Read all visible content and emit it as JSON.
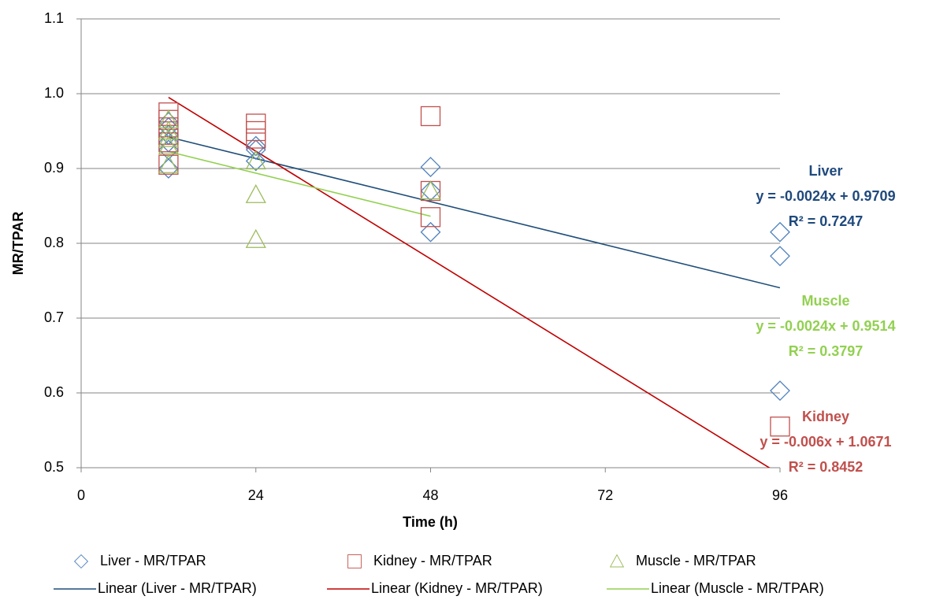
{
  "chart_data": {
    "type": "scatter",
    "x_label": "Time (h)",
    "y_label": "MR/TPAR",
    "xlim": [
      0,
      96
    ],
    "xticks": [
      0,
      24,
      48,
      72,
      96
    ],
    "ylim": [
      0.5,
      1.1
    ],
    "yticks": [
      0.5,
      0.6,
      0.7,
      0.8,
      0.9,
      {
        "value": 1.0,
        "label": "1.0"
      },
      1.1
    ],
    "grid": true,
    "series": [
      {
        "name": "Liver - MR/TPAR",
        "marker": "diamond",
        "color": "#4f81bd",
        "x": [
          12,
          12,
          12,
          12,
          12,
          12,
          24,
          24,
          24,
          48,
          48,
          48,
          96,
          96,
          96
        ],
        "values": [
          0.962,
          0.955,
          0.945,
          0.935,
          0.925,
          0.9,
          0.93,
          0.925,
          0.91,
          0.902,
          0.87,
          0.815,
          0.815,
          0.783,
          0.603
        ],
        "trendline": {
          "name": "Linear (Liver - MR/TPAR)",
          "color": "#1f4e79",
          "label": "Liver",
          "label_color": "#1f497d",
          "equation": "y = -0.0024x + 0.9709",
          "r2": "R² = 0.7247",
          "slope": -0.0024,
          "intercept": 0.9709
        }
      },
      {
        "name": "Kidney - MR/TPAR",
        "marker": "square",
        "color": "#c0504d",
        "x": [
          12,
          12,
          12,
          12,
          12,
          12,
          24,
          24,
          24,
          48,
          48,
          48,
          96
        ],
        "values": [
          0.975,
          0.965,
          0.955,
          0.945,
          0.935,
          0.905,
          0.96,
          0.95,
          0.94,
          0.97,
          0.87,
          0.835,
          0.555
        ],
        "trendline": {
          "name": "Linear (Kidney - MR/TPAR)",
          "color": "#c00000",
          "label": "Kidney",
          "label_color": "#c0504d",
          "equation": "y = -0.006x + 1.0671",
          "r2": "R² = 0.8452",
          "slope": -0.006,
          "intercept": 1.0671
        }
      },
      {
        "name": "Muscle - MR/TPAR",
        "marker": "triangle",
        "color": "#9bbb59",
        "x": [
          12,
          12,
          12,
          12,
          12,
          24,
          24,
          24,
          48
        ],
        "values": [
          0.965,
          0.95,
          0.94,
          0.93,
          0.905,
          0.91,
          0.865,
          0.805,
          0.87
        ],
        "trendline": {
          "name": "Linear (Muscle - MR/TPAR)",
          "color": "#92d050",
          "label": "Muscle",
          "label_color": "#92d050",
          "equation": "y = -0.0024x + 0.9514",
          "r2": "R² = 0.3797",
          "slope": -0.0024,
          "intercept": 0.9514
        }
      }
    ]
  }
}
